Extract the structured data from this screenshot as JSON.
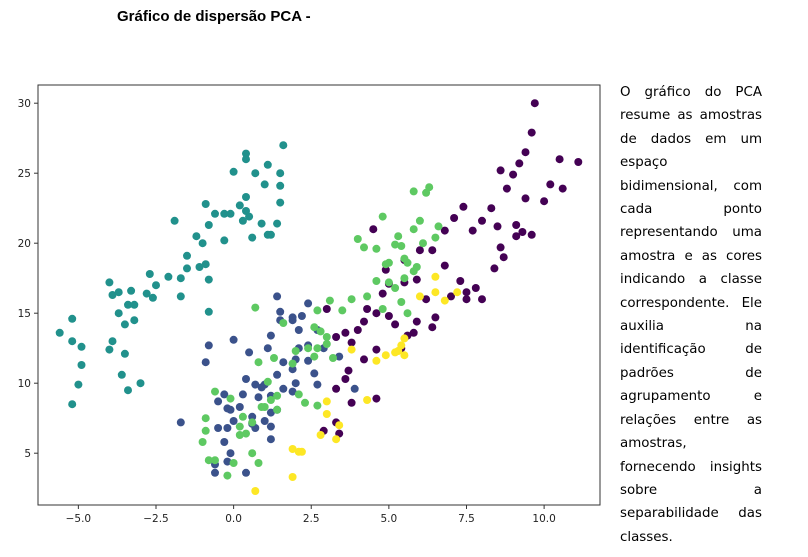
{
  "page": {
    "title": "Gráfico de dispersão PCA -",
    "description": "O gráfico do PCA resume as amostras de dados em um espaço bidimensional, com cada ponto representando uma amostra e as cores indicando a classe correspondente. Ele auxilia na identificação de padrões de agrupamento e relações entre as amostras, fornecendo insights sobre a separabilidade das classes."
  },
  "chart_data": {
    "type": "scatter",
    "title": "",
    "xlabel": "",
    "ylabel": "",
    "xlim": [
      -6.3,
      11.8
    ],
    "ylim": [
      1.3,
      31.3
    ],
    "xticks": [
      -5.0,
      -2.5,
      0.0,
      2.5,
      5.0,
      7.5,
      10.0
    ],
    "xtick_labels": [
      "−5.0",
      "−2.5",
      "0.0",
      "2.5",
      "5.0",
      "7.5",
      "10.0"
    ],
    "yticks": [
      5,
      10,
      15,
      20,
      25,
      30
    ],
    "ytick_labels": [
      "5",
      "10",
      "15",
      "20",
      "25",
      "30"
    ],
    "grid": false,
    "legend": "none",
    "series": [
      {
        "color": "#440154",
        "points": [
          [
            9.7,
            30.0
          ],
          [
            9.6,
            27.9
          ],
          [
            10.5,
            26.0
          ],
          [
            11.1,
            25.8
          ],
          [
            9.4,
            26.5
          ],
          [
            9.2,
            25.7
          ],
          [
            9.0,
            24.9
          ],
          [
            8.6,
            25.2
          ],
          [
            8.8,
            23.9
          ],
          [
            10.2,
            24.2
          ],
          [
            10.0,
            23.0
          ],
          [
            9.4,
            23.2
          ],
          [
            8.3,
            22.5
          ],
          [
            8.0,
            21.6
          ],
          [
            8.5,
            21.2
          ],
          [
            9.1,
            21.3
          ],
          [
            9.6,
            20.6
          ],
          [
            9.1,
            20.5
          ],
          [
            8.6,
            19.7
          ],
          [
            8.7,
            19.0
          ],
          [
            7.7,
            20.9
          ],
          [
            7.1,
            21.8
          ],
          [
            6.8,
            20.9
          ],
          [
            6.4,
            19.5
          ],
          [
            6.0,
            19.5
          ],
          [
            5.5,
            18.8
          ],
          [
            6.8,
            18.4
          ],
          [
            5.9,
            17.4
          ],
          [
            5.0,
            17.1
          ],
          [
            7.3,
            17.3
          ],
          [
            7.5,
            16.5
          ],
          [
            7.0,
            16.2
          ],
          [
            8.0,
            16.0
          ],
          [
            7.5,
            16.0
          ],
          [
            6.5,
            14.7
          ],
          [
            5.9,
            14.4
          ],
          [
            6.4,
            14.0
          ],
          [
            5.8,
            13.6
          ],
          [
            5.2,
            14.2
          ],
          [
            5.0,
            14.8
          ],
          [
            4.6,
            15.0
          ],
          [
            4.2,
            14.4
          ],
          [
            4.0,
            13.8
          ],
          [
            3.6,
            13.6
          ],
          [
            3.3,
            13.3
          ],
          [
            3.8,
            12.9
          ],
          [
            4.6,
            12.4
          ],
          [
            5.6,
            13.4
          ],
          [
            5.4,
            12.5
          ],
          [
            4.2,
            11.7
          ],
          [
            3.7,
            10.9
          ],
          [
            3.6,
            10.3
          ],
          [
            3.3,
            9.6
          ],
          [
            3.8,
            8.6
          ],
          [
            4.6,
            8.9
          ],
          [
            4.9,
            18.1
          ],
          [
            5.5,
            17.2
          ],
          [
            3.3,
            7.2
          ],
          [
            2.9,
            6.6
          ],
          [
            3.4,
            6.4
          ],
          [
            4.5,
            21.0
          ],
          [
            3.0,
            15.3
          ],
          [
            7.8,
            16.8
          ],
          [
            8.4,
            18.2
          ],
          [
            6.2,
            16.0
          ],
          [
            9.3,
            20.8
          ],
          [
            10.6,
            23.9
          ],
          [
            7.4,
            22.6
          ],
          [
            4.8,
            16.4
          ],
          [
            4.3,
            15.3
          ]
        ]
      },
      {
        "color": "#3b528b",
        "points": [
          [
            0.0,
            13.1
          ],
          [
            0.5,
            12.2
          ],
          [
            1.1,
            12.5
          ],
          [
            1.2,
            13.4
          ],
          [
            1.5,
            14.5
          ],
          [
            1.9,
            14.5
          ],
          [
            1.9,
            14.7
          ],
          [
            2.2,
            14.8
          ],
          [
            2.4,
            15.7
          ],
          [
            1.4,
            16.2
          ],
          [
            1.5,
            15.1
          ],
          [
            2.1,
            13.8
          ],
          [
            1.6,
            11.5
          ],
          [
            1.4,
            10.6
          ],
          [
            1.9,
            11.0
          ],
          [
            2.4,
            11.6
          ],
          [
            2.0,
            11.7
          ],
          [
            2.1,
            12.5
          ],
          [
            2.7,
            13.8
          ],
          [
            2.4,
            12.7
          ],
          [
            2.6,
            10.7
          ],
          [
            2.7,
            9.9
          ],
          [
            2.0,
            10.0
          ],
          [
            1.9,
            9.4
          ],
          [
            1.6,
            9.6
          ],
          [
            1.2,
            9.1
          ],
          [
            1.0,
            9.9
          ],
          [
            0.7,
            9.9
          ],
          [
            0.9,
            9.7
          ],
          [
            0.8,
            9.0
          ],
          [
            0.3,
            9.2
          ],
          [
            0.2,
            8.3
          ],
          [
            -0.2,
            8.2
          ],
          [
            -0.3,
            9.2
          ],
          [
            -0.5,
            8.7
          ],
          [
            -0.1,
            8.1
          ],
          [
            0.0,
            7.3
          ],
          [
            0.6,
            7.6
          ],
          [
            0.6,
            7.1
          ],
          [
            1.0,
            7.3
          ],
          [
            1.2,
            7.9
          ],
          [
            1.4,
            8.1
          ],
          [
            1.2,
            6.0
          ],
          [
            1.2,
            6.9
          ],
          [
            0.7,
            6.8
          ],
          [
            -0.2,
            6.8
          ],
          [
            -0.5,
            6.8
          ],
          [
            -0.3,
            5.8
          ],
          [
            -0.1,
            5.0
          ],
          [
            -0.2,
            4.4
          ],
          [
            -0.6,
            4.2
          ],
          [
            -0.6,
            3.6
          ],
          [
            0.4,
            3.6
          ],
          [
            -0.8,
            12.7
          ],
          [
            -0.9,
            11.5
          ],
          [
            -1.7,
            7.2
          ],
          [
            2.9,
            12.5
          ],
          [
            0.4,
            10.3
          ],
          [
            3.4,
            11.9
          ],
          [
            3.9,
            9.6
          ]
        ]
      },
      {
        "color": "#21918c",
        "points": [
          [
            -5.2,
            8.5
          ],
          [
            -5.0,
            9.9
          ],
          [
            -4.9,
            11.3
          ],
          [
            -4.9,
            12.6
          ],
          [
            -5.2,
            13.0
          ],
          [
            -5.6,
            13.6
          ],
          [
            -5.2,
            14.6
          ],
          [
            -3.6,
            10.6
          ],
          [
            -3.4,
            9.5
          ],
          [
            -3.0,
            10.0
          ],
          [
            -3.5,
            12.1
          ],
          [
            -4.0,
            12.4
          ],
          [
            -3.9,
            13.0
          ],
          [
            -3.5,
            14.2
          ],
          [
            -3.2,
            14.5
          ],
          [
            -3.7,
            15.0
          ],
          [
            -3.4,
            15.6
          ],
          [
            -3.9,
            16.3
          ],
          [
            -3.7,
            16.5
          ],
          [
            -3.3,
            16.6
          ],
          [
            -3.2,
            15.6
          ],
          [
            -2.8,
            16.4
          ],
          [
            -2.6,
            16.1
          ],
          [
            -2.5,
            17.0
          ],
          [
            -2.1,
            17.6
          ],
          [
            -2.7,
            17.8
          ],
          [
            -1.7,
            16.2
          ],
          [
            -1.7,
            17.5
          ],
          [
            -1.5,
            18.2
          ],
          [
            -1.5,
            19.1
          ],
          [
            -1.1,
            18.3
          ],
          [
            -0.9,
            18.5
          ],
          [
            -0.8,
            17.4
          ],
          [
            -0.8,
            15.1
          ],
          [
            -1.2,
            20.5
          ],
          [
            -1.0,
            20.0
          ],
          [
            -0.8,
            21.3
          ],
          [
            -0.9,
            22.8
          ],
          [
            -0.3,
            20.2
          ],
          [
            -0.1,
            22.1
          ],
          [
            0.3,
            21.6
          ],
          [
            0.0,
            25.1
          ],
          [
            0.4,
            23.3
          ],
          [
            0.2,
            22.7
          ],
          [
            0.4,
            22.3
          ],
          [
            0.5,
            21.9
          ],
          [
            0.6,
            20.4
          ],
          [
            0.9,
            21.4
          ],
          [
            1.0,
            24.2
          ],
          [
            1.1,
            25.6
          ],
          [
            0.4,
            26.4
          ],
          [
            0.4,
            26.0
          ],
          [
            0.7,
            25.0
          ],
          [
            1.2,
            20.6
          ],
          [
            1.4,
            21.4
          ],
          [
            1.5,
            22.9
          ],
          [
            1.5,
            25.0
          ],
          [
            1.5,
            24.1
          ],
          [
            1.6,
            27.0
          ],
          [
            1.1,
            20.6
          ],
          [
            -1.9,
            21.6
          ],
          [
            -4.0,
            17.2
          ],
          [
            -0.3,
            22.1
          ],
          [
            -0.6,
            22.1
          ]
        ]
      },
      {
        "color": "#5ec962",
        "points": [
          [
            5.8,
            23.7
          ],
          [
            6.3,
            24.0
          ],
          [
            6.2,
            23.6
          ],
          [
            4.8,
            21.9
          ],
          [
            4.0,
            20.3
          ],
          [
            4.6,
            19.6
          ],
          [
            5.2,
            19.9
          ],
          [
            5.4,
            19.8
          ],
          [
            5.0,
            18.6
          ],
          [
            5.6,
            18.6
          ],
          [
            5.8,
            18.0
          ],
          [
            5.5,
            17.5
          ],
          [
            5.0,
            17.2
          ],
          [
            4.6,
            17.3
          ],
          [
            4.3,
            16.2
          ],
          [
            5.2,
            16.8
          ],
          [
            5.4,
            15.8
          ],
          [
            5.6,
            15.0
          ],
          [
            4.8,
            15.3
          ],
          [
            3.8,
            16.0
          ],
          [
            3.5,
            15.2
          ],
          [
            3.1,
            15.9
          ],
          [
            2.7,
            15.2
          ],
          [
            2.6,
            14.0
          ],
          [
            2.8,
            13.7
          ],
          [
            3.0,
            13.3
          ],
          [
            2.7,
            12.5
          ],
          [
            3.0,
            12.8
          ],
          [
            3.2,
            11.8
          ],
          [
            2.6,
            11.9
          ],
          [
            2.4,
            12.5
          ],
          [
            2.0,
            12.3
          ],
          [
            1.9,
            11.4
          ],
          [
            1.3,
            11.8
          ],
          [
            0.8,
            11.5
          ],
          [
            0.7,
            15.4
          ],
          [
            1.6,
            14.3
          ],
          [
            1.1,
            10.1
          ],
          [
            1.2,
            8.8
          ],
          [
            1.4,
            9.1
          ],
          [
            1.0,
            8.3
          ],
          [
            2.7,
            8.4
          ],
          [
            2.3,
            8.6
          ],
          [
            2.1,
            9.2
          ],
          [
            1.4,
            8.1
          ],
          [
            0.9,
            8.3
          ],
          [
            0.4,
            6.4
          ],
          [
            0.2,
            6.3
          ],
          [
            0.2,
            6.9
          ],
          [
            0.6,
            7.2
          ],
          [
            0.3,
            7.6
          ],
          [
            -0.1,
            8.9
          ],
          [
            -0.6,
            9.4
          ],
          [
            -0.9,
            7.5
          ],
          [
            -0.9,
            6.6
          ],
          [
            -1.0,
            5.8
          ],
          [
            -0.8,
            4.5
          ],
          [
            -0.6,
            4.5
          ],
          [
            0.0,
            4.3
          ],
          [
            -0.2,
            3.4
          ],
          [
            0.6,
            5.0
          ],
          [
            0.8,
            4.3
          ],
          [
            6.0,
            21.6
          ],
          [
            6.6,
            21.2
          ],
          [
            6.5,
            20.4
          ],
          [
            6.1,
            20.0
          ],
          [
            5.8,
            21.0
          ],
          [
            5.3,
            20.5
          ],
          [
            5.5,
            18.9
          ],
          [
            5.9,
            18.3
          ],
          [
            4.2,
            19.7
          ],
          [
            4.9,
            18.5
          ]
        ]
      },
      {
        "color": "#fde725",
        "points": [
          [
            6.5,
            17.6
          ],
          [
            6.5,
            16.5
          ],
          [
            6.8,
            15.9
          ],
          [
            7.2,
            16.5
          ],
          [
            5.5,
            13.2
          ],
          [
            5.4,
            12.7
          ],
          [
            5.5,
            12.0
          ],
          [
            5.3,
            12.3
          ],
          [
            5.2,
            12.2
          ],
          [
            4.9,
            12.0
          ],
          [
            4.6,
            11.6
          ],
          [
            3.8,
            12.4
          ],
          [
            3.0,
            7.8
          ],
          [
            3.4,
            7.0
          ],
          [
            3.3,
            6.0
          ],
          [
            2.8,
            6.3
          ],
          [
            2.1,
            5.1
          ],
          [
            2.2,
            5.1
          ],
          [
            1.9,
            5.3
          ],
          [
            0.7,
            2.3
          ],
          [
            1.9,
            3.3
          ],
          [
            4.3,
            8.8
          ],
          [
            6.0,
            16.2
          ],
          [
            3.0,
            8.7
          ]
        ]
      }
    ]
  }
}
